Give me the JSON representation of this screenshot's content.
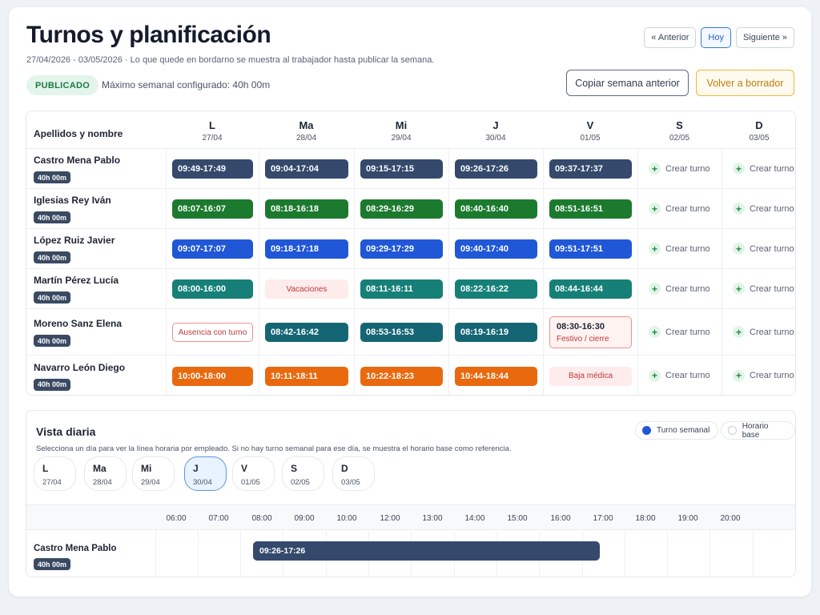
{
  "header": {
    "title": "Turnos y planificación",
    "subtitle": "27/04/2026 - 03/05/2026 · Lo que quede en bordarno se muestra al trabajador hasta publicar la semana.",
    "nav": {
      "prev": "« Anterior",
      "today": "Hoy",
      "next": "Siguiente »"
    },
    "status_badge": "PUBLICADO",
    "max_weekly": "Máximo semanal configurado: 40h 00m",
    "copy_button": "Copiar semana anterior",
    "draft_button": "Volver a borrador"
  },
  "grid": {
    "name_header": "Apellidos y nombre",
    "days": [
      {
        "letter": "L",
        "date": "27/04"
      },
      {
        "letter": "Ma",
        "date": "28/04"
      },
      {
        "letter": "Mi",
        "date": "29/04"
      },
      {
        "letter": "J",
        "date": "30/04"
      },
      {
        "letter": "V",
        "date": "01/05"
      },
      {
        "letter": "S",
        "date": "02/05"
      },
      {
        "letter": "D",
        "date": "03/05"
      }
    ],
    "create_label": "Crear turno",
    "rows": [
      {
        "name": "Castro Mena Pablo",
        "hours": "40h 00m",
        "cells": [
          {
            "label": "09:49-17:49",
            "style": "slate"
          },
          {
            "label": "09:04-17:04",
            "style": "slate"
          },
          {
            "label": "09:15-17:15",
            "style": "slate"
          },
          {
            "label": "09:26-17:26",
            "style": "slate"
          },
          {
            "label": "09:37-17:37",
            "style": "slate"
          }
        ]
      },
      {
        "name": "Iglesias Rey Iván",
        "hours": "40h 00m",
        "cells": [
          {
            "label": "08:07-16:07",
            "style": "green"
          },
          {
            "label": "08:18-16:18",
            "style": "green"
          },
          {
            "label": "08:29-16:29",
            "style": "green"
          },
          {
            "label": "08:40-16:40",
            "style": "green"
          },
          {
            "label": "08:51-16:51",
            "style": "green"
          }
        ]
      },
      {
        "name": "López Ruiz Javier",
        "hours": "40h 00m",
        "cells": [
          {
            "label": "09:07-17:07",
            "style": "blue"
          },
          {
            "label": "09:18-17:18",
            "style": "blue"
          },
          {
            "label": "09:29-17:29",
            "style": "blue"
          },
          {
            "label": "09:40-17:40",
            "style": "blue"
          },
          {
            "label": "09:51-17:51",
            "style": "blue"
          }
        ]
      },
      {
        "name": "Martín Pérez Lucía",
        "hours": "40h 00m",
        "cells": [
          {
            "label": "08:00-16:00",
            "style": "teal"
          },
          {
            "label": "Vacaciones",
            "style": "pink"
          },
          {
            "label": "08:11-16:11",
            "style": "teal"
          },
          {
            "label": "08:22-16:22",
            "style": "teal"
          },
          {
            "label": "08:44-16:44",
            "style": "teal"
          }
        ]
      },
      {
        "name": "Moreno Sanz Elena",
        "hours": "40h 00m",
        "cells": [
          {
            "label": "Ausencia con turno",
            "style": "outline"
          },
          {
            "label": "08:42-16:42",
            "style": "petrol"
          },
          {
            "label": "08:53-16:53",
            "style": "petrol"
          },
          {
            "label": "08:19-16:19",
            "style": "petrol"
          },
          {
            "label": "08:30-16:30",
            "sublabel": "Festivo / cierre",
            "style": "festivo"
          }
        ]
      },
      {
        "name": "Navarro León Diego",
        "hours": "40h 00m",
        "cells": [
          {
            "label": "10:00-18:00",
            "style": "orange"
          },
          {
            "label": "10:11-18:11",
            "style": "orange"
          },
          {
            "label": "10:22-18:23",
            "style": "orange"
          },
          {
            "label": "10:44-18:44",
            "style": "orange"
          },
          {
            "label": "Baja médica",
            "style": "pink"
          }
        ]
      }
    ]
  },
  "daily": {
    "title": "Vista diaria",
    "subtitle": "Selecciona un día para ver la línea horaria por empleado. Si no hay turno semanal para ese día, se muestra el horario base como referencia.",
    "toggle_weekly": "Turno semanal",
    "toggle_base": "Horario base",
    "selected_day": "J",
    "days": [
      {
        "letter": "L",
        "date": "27/04"
      },
      {
        "letter": "Ma",
        "date": "28/04"
      },
      {
        "letter": "Mi",
        "date": "29/04"
      },
      {
        "letter": "J",
        "date": "30/04"
      },
      {
        "letter": "V",
        "date": "01/05"
      },
      {
        "letter": "S",
        "date": "02/05"
      },
      {
        "letter": "D",
        "date": "03/05"
      }
    ],
    "hours": [
      "06:00",
      "07:00",
      "08:00",
      "09:00",
      "10:00",
      "12:00",
      "13:00",
      "14:00",
      "15:00",
      "16:00",
      "17:00",
      "18:00",
      "19:00",
      "20:00"
    ],
    "employee": {
      "name": "Castro Mena Pablo",
      "hours": "40h 00m",
      "shift": "09:26-17:26"
    }
  },
  "colors": {
    "slate": "#34496b",
    "green": "#1c7a2e",
    "blue": "#1f57d6",
    "teal": "#168078",
    "petrol": "#156675",
    "orange": "#e9690f",
    "absence_bg": "#fdeceb",
    "absence_text": "#c2383a",
    "published": "#1d7a45"
  }
}
